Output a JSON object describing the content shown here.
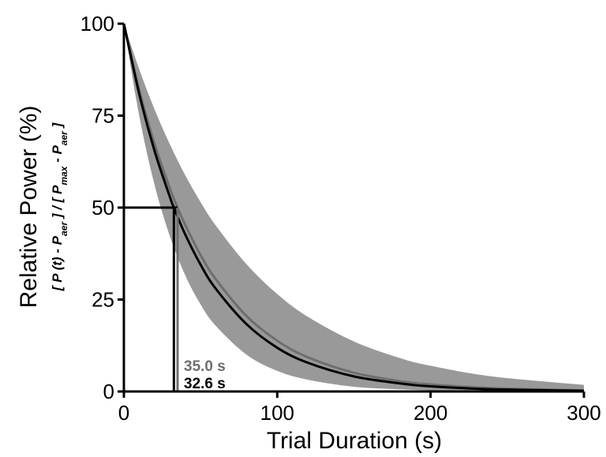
{
  "chart_data": {
    "type": "line",
    "xlabel": "Trial Duration (s)",
    "ylabel": "Relative Power (%)",
    "ylabel_sub": "[ P (t) - Paer ] / [ Pmax - Paer ]",
    "xlim": [
      0,
      300
    ],
    "ylim": [
      0,
      100
    ],
    "x_ticks": [
      0,
      100,
      200,
      300
    ],
    "y_ticks": [
      0,
      25,
      50,
      75,
      100
    ],
    "grid": false,
    "series": [
      {
        "color": "#000000",
        "x": [
          0,
          10,
          20,
          30,
          32.6,
          40,
          50,
          60,
          80,
          100,
          120,
          150,
          180,
          200,
          240,
          300
        ],
        "y": [
          100,
          80.9,
          65.4,
          52.9,
          50.0,
          42.7,
          34.5,
          27.9,
          18.3,
          11.9,
          7.8,
          4.1,
          2.2,
          1.4,
          0.6,
          0.2
        ]
      },
      {
        "color": "#6e6e6e",
        "x": [
          0,
          10,
          20,
          30,
          35.0,
          40,
          50,
          60,
          80,
          100,
          120,
          150,
          180,
          200,
          240,
          300
        ],
        "y": [
          100,
          82.0,
          67.3,
          55.2,
          50.0,
          45.3,
          37.1,
          30.5,
          20.5,
          13.8,
          9.3,
          5.1,
          2.8,
          1.9,
          0.9,
          0.3
        ]
      }
    ],
    "band": {
      "color": "#999999",
      "x": [
        0,
        10,
        20,
        30,
        40,
        50,
        60,
        80,
        100,
        120,
        150,
        180,
        200,
        240,
        300
      ],
      "upper": [
        100,
        87.6,
        76.7,
        67.2,
        58.8,
        51.5,
        45.1,
        34.6,
        26.5,
        20.3,
        13.6,
        9.1,
        7.0,
        4.1,
        1.8
      ],
      "lower": [
        100,
        75.0,
        56.2,
        42.2,
        31.6,
        23.7,
        17.8,
        10.0,
        5.6,
        3.2,
        1.3,
        0.6,
        0.3,
        0.1,
        0.0
      ]
    },
    "reference_y": 50,
    "annotations": [
      {
        "text": "35.0 s",
        "x": 35.0,
        "color": "#6e6e6e"
      },
      {
        "text": "32.6 s",
        "x": 32.6,
        "color": "#000000"
      }
    ]
  }
}
